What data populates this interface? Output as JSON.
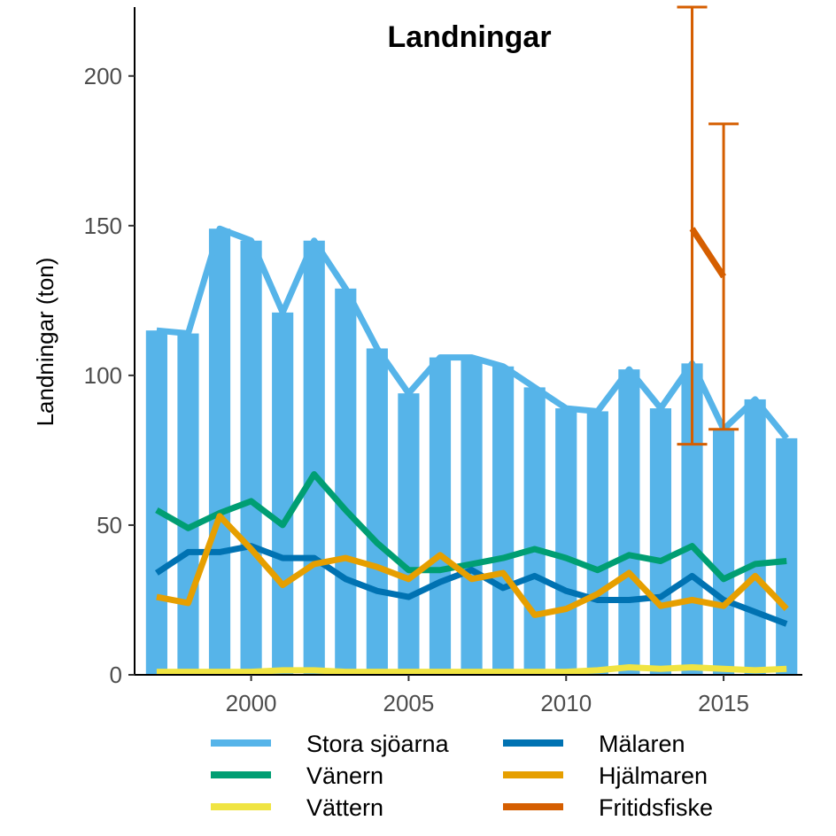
{
  "chart_data": {
    "type": "bar",
    "title": "Landningar",
    "xlabel": "",
    "ylabel": "Landningar (ton)",
    "xlim": [
      1996.3,
      2017.5
    ],
    "ylim": [
      0,
      223
    ],
    "xticks": [
      2000,
      2005,
      2010,
      2015
    ],
    "yticks": [
      0,
      50,
      100,
      150,
      200
    ],
    "grid": false,
    "legend_position": "bottom",
    "categories": [
      1997,
      1998,
      1999,
      2000,
      2001,
      2002,
      2003,
      2004,
      2005,
      2006,
      2007,
      2008,
      2009,
      2010,
      2011,
      2012,
      2013,
      2014,
      2015,
      2016,
      2017
    ],
    "bars": {
      "name": "Stora sjöarna",
      "color": "#56B4E9",
      "values": [
        115,
        114,
        149,
        145,
        121,
        145,
        129,
        109,
        94,
        106,
        106,
        103,
        96,
        89,
        88,
        102,
        89,
        104,
        82,
        92,
        79
      ]
    },
    "series": [
      {
        "name": "Stora sjöarna",
        "color": "#56B4E9",
        "values": [
          115,
          114,
          149,
          145,
          121,
          145,
          129,
          109,
          94,
          106,
          106,
          103,
          96,
          89,
          88,
          102,
          89,
          104,
          82,
          92,
          79
        ]
      },
      {
        "name": "Vänern",
        "color": "#009E73",
        "values": [
          55,
          49,
          54,
          58,
          50,
          67,
          55,
          44,
          35,
          35,
          37,
          39,
          42,
          39,
          35,
          40,
          38,
          43,
          32,
          37,
          38
        ]
      },
      {
        "name": "Vättern",
        "color": "#F0E442",
        "values": [
          1,
          1,
          1,
          1,
          1.5,
          1.5,
          1,
          1,
          1,
          1,
          1,
          1,
          1,
          1,
          1.5,
          2.5,
          2,
          2.5,
          2,
          1.5,
          2
        ]
      },
      {
        "name": "Mälaren",
        "color": "#0072B2",
        "values": [
          34,
          41,
          41,
          43,
          39,
          39,
          32,
          28,
          26,
          31,
          35,
          29,
          33,
          28,
          25,
          25,
          26,
          33,
          25,
          21,
          17
        ]
      },
      {
        "name": "Hjälmaren",
        "color": "#E69F00",
        "values": [
          26,
          24,
          53,
          42,
          30,
          37,
          39,
          36,
          32,
          40,
          32,
          34,
          20,
          22,
          27,
          34,
          23,
          25,
          23,
          33,
          22
        ]
      },
      {
        "name": "Fritidsfiske",
        "color": "#D55E00",
        "x": [
          2014,
          2015
        ],
        "values": [
          149,
          133
        ],
        "error_low": [
          77,
          82
        ],
        "error_high": [
          223,
          184
        ]
      }
    ],
    "legend": [
      {
        "label": "Stora sjöarna",
        "color": "#56B4E9"
      },
      {
        "label": "Mälaren",
        "color": "#0072B2"
      },
      {
        "label": "Vänern",
        "color": "#009E73"
      },
      {
        "label": "Hjälmaren",
        "color": "#E69F00"
      },
      {
        "label": "Vättern",
        "color": "#F0E442"
      },
      {
        "label": "Fritidsfiske",
        "color": "#D55E00"
      }
    ]
  }
}
